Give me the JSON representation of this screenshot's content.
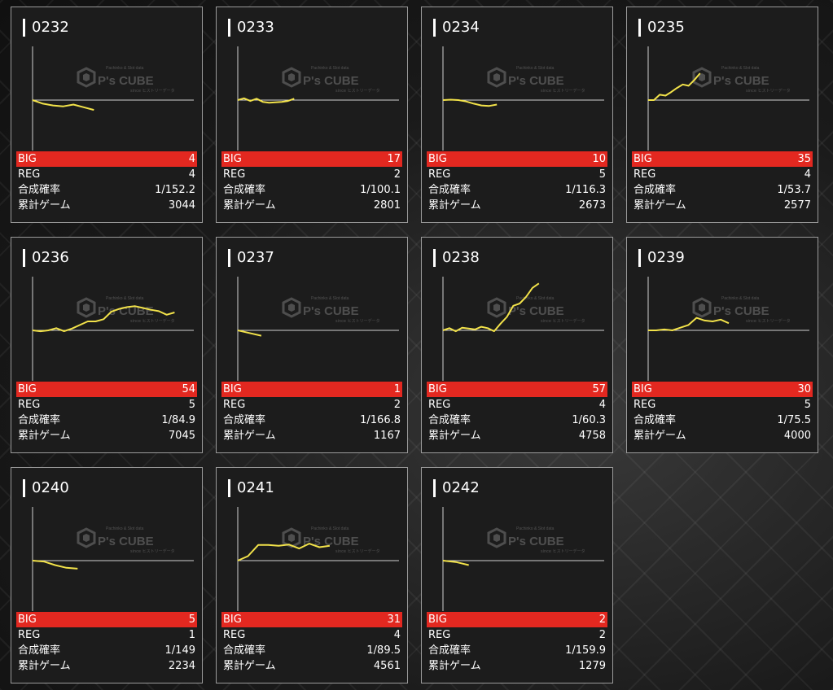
{
  "labels": {
    "big": "BIG",
    "reg": "REG",
    "prob": "合成確率",
    "games": "累計ゲーム"
  },
  "watermark": {
    "brand": "P's CUBE",
    "sub": "Pachinko & Slot data",
    "sub2": "since ヒストリーデータ"
  },
  "colors": {
    "big_bar": "#e32820",
    "line": "#f2e24a",
    "axis": "#cfcfcf",
    "card_bg": "#1c1c1c"
  },
  "machines": [
    {
      "id": "0232",
      "big": "4",
      "reg": "4",
      "prob": "1/152.2",
      "games": "3044",
      "chart_data": {
        "type": "line",
        "y": [
          0,
          -0.08,
          -0.12,
          -0.14,
          -0.1,
          -0.16,
          -0.22
        ]
      }
    },
    {
      "id": "0233",
      "big": "17",
      "reg": "2",
      "prob": "1/100.1",
      "games": "2801",
      "chart_data": {
        "type": "line",
        "y": [
          0,
          0.04,
          -0.02,
          0.03,
          -0.04,
          -0.06,
          -0.05,
          -0.04,
          -0.02,
          0.03
        ]
      }
    },
    {
      "id": "0234",
      "big": "10",
      "reg": "5",
      "prob": "1/116.3",
      "games": "2673",
      "chart_data": {
        "type": "line",
        "y": [
          0,
          0.01,
          0.0,
          -0.03,
          -0.08,
          -0.12,
          -0.13,
          -0.1
        ]
      }
    },
    {
      "id": "0235",
      "big": "35",
      "reg": "4",
      "prob": "1/53.7",
      "games": "2577",
      "chart_data": {
        "type": "line",
        "y": [
          0,
          0.0,
          0.12,
          0.1,
          0.18,
          0.27,
          0.35,
          0.32,
          0.45,
          0.6
        ]
      }
    },
    {
      "id": "0236",
      "big": "54",
      "reg": "5",
      "prob": "1/84.9",
      "games": "7045",
      "chart_data": {
        "type": "line",
        "y": [
          0,
          -0.02,
          0.0,
          0.05,
          -0.02,
          0.04,
          0.12,
          0.2,
          0.2,
          0.25,
          0.42,
          0.48,
          0.52,
          0.54,
          0.5,
          0.46,
          0.43,
          0.35,
          0.4
        ]
      }
    },
    {
      "id": "0237",
      "big": "1",
      "reg": "2",
      "prob": "1/166.8",
      "games": "1167",
      "chart_data": {
        "type": "line",
        "y": [
          0,
          -0.06,
          -0.12
        ]
      }
    },
    {
      "id": "0238",
      "big": "57",
      "reg": "4",
      "prob": "1/60.3",
      "games": "4758",
      "chart_data": {
        "type": "line",
        "y": [
          0,
          0.05,
          -0.02,
          0.06,
          0.04,
          0.02,
          0.08,
          0.05,
          -0.02,
          0.15,
          0.3,
          0.55,
          0.6,
          0.75,
          0.95,
          1.05
        ]
      }
    },
    {
      "id": "0239",
      "big": "30",
      "reg": "5",
      "prob": "1/75.5",
      "games": "4000",
      "chart_data": {
        "type": "line",
        "y": [
          0,
          0.0,
          0.02,
          0.0,
          0.06,
          0.12,
          0.28,
          0.22,
          0.2,
          0.24,
          0.16
        ]
      }
    },
    {
      "id": "0240",
      "big": "5",
      "reg": "1",
      "prob": "1/149",
      "games": "2234",
      "chart_data": {
        "type": "line",
        "y": [
          0,
          -0.02,
          -0.1,
          -0.16,
          -0.18
        ]
      }
    },
    {
      "id": "0241",
      "big": "31",
      "reg": "4",
      "prob": "1/89.5",
      "games": "4561",
      "chart_data": {
        "type": "line",
        "y": [
          0,
          0.1,
          0.35,
          0.35,
          0.33,
          0.36,
          0.27,
          0.38,
          0.3,
          0.33
        ]
      }
    },
    {
      "id": "0242",
      "big": "2",
      "reg": "2",
      "prob": "1/159.9",
      "games": "1279",
      "chart_data": {
        "type": "line",
        "y": [
          0,
          -0.03,
          -0.1
        ]
      }
    }
  ]
}
